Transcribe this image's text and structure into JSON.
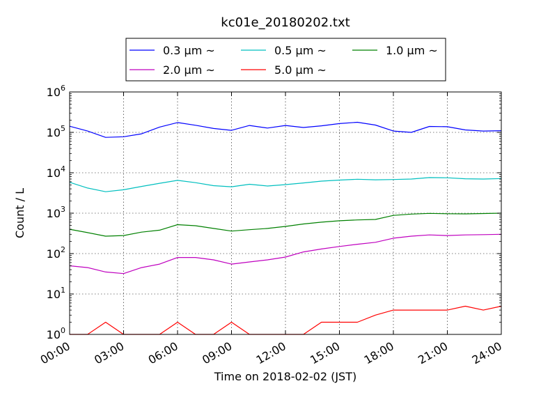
{
  "chart_data": {
    "type": "line",
    "title": "kc01e_20180202.txt",
    "xlabel": "Time on 2018-02-02 (JST)",
    "ylabel": "Count / L",
    "yscale": "log",
    "ylim": [
      1,
      1000000
    ],
    "xlim": [
      "2018-02-02 00:00",
      "2018-02-03 00:00"
    ],
    "xtick_labels": [
      "00:00",
      "03:00",
      "06:00",
      "09:00",
      "12:00",
      "15:00",
      "18:00",
      "21:00",
      "24:00"
    ],
    "ytick_labels": [
      {
        "base": "10",
        "exp": "0"
      },
      {
        "base": "10",
        "exp": "1"
      },
      {
        "base": "10",
        "exp": "2"
      },
      {
        "base": "10",
        "exp": "3"
      },
      {
        "base": "10",
        "exp": "4"
      },
      {
        "base": "10",
        "exp": "5"
      },
      {
        "base": "10",
        "exp": "6"
      }
    ],
    "grid": true,
    "legend_placement": "top-center",
    "x": [
      "00:00",
      "01:00",
      "02:00",
      "03:00",
      "04:00",
      "05:00",
      "06:00",
      "07:00",
      "08:00",
      "09:00",
      "10:00",
      "11:00",
      "12:00",
      "13:00",
      "14:00",
      "15:00",
      "16:00",
      "17:00",
      "18:00",
      "19:00",
      "20:00",
      "21:00",
      "22:00",
      "23:00",
      "24:00"
    ],
    "series": [
      {
        "name": "0.3 µm ~",
        "color": "#0000ff",
        "values": [
          142000,
          108000,
          75000,
          78000,
          92000,
          135000,
          175000,
          150000,
          125000,
          112000,
          148000,
          128000,
          148000,
          132000,
          145000,
          165000,
          178000,
          152000,
          108000,
          100000,
          140000,
          138000,
          115000,
          108000,
          110000
        ]
      },
      {
        "name": "0.5 µm ~",
        "color": "#00bfbf",
        "values": [
          5800,
          4200,
          3400,
          3800,
          4600,
          5500,
          6500,
          5700,
          4800,
          4500,
          5200,
          4700,
          5100,
          5600,
          6200,
          6600,
          6900,
          6700,
          6800,
          7000,
          7600,
          7500,
          7100,
          7000,
          7200
        ]
      },
      {
        "name": "1.0 µm ~",
        "color": "#008000",
        "values": [
          400,
          330,
          270,
          280,
          340,
          380,
          520,
          490,
          420,
          360,
          390,
          420,
          470,
          540,
          600,
          650,
          680,
          700,
          880,
          950,
          990,
          970,
          960,
          980,
          1000
        ]
      },
      {
        "name": "2.0 µm ~",
        "color": "#bf00bf",
        "values": [
          50,
          45,
          35,
          32,
          45,
          55,
          80,
          80,
          70,
          55,
          62,
          70,
          82,
          110,
          130,
          150,
          170,
          190,
          240,
          270,
          290,
          280,
          290,
          295,
          300
        ]
      },
      {
        "name": "5.0 µm ~",
        "color": "#ff0000",
        "values": [
          1,
          1,
          2,
          1,
          1,
          1,
          2,
          1,
          1,
          2,
          1,
          1,
          1,
          1,
          2,
          2,
          2,
          3,
          4,
          4,
          4,
          4,
          5,
          4,
          5
        ]
      }
    ]
  }
}
